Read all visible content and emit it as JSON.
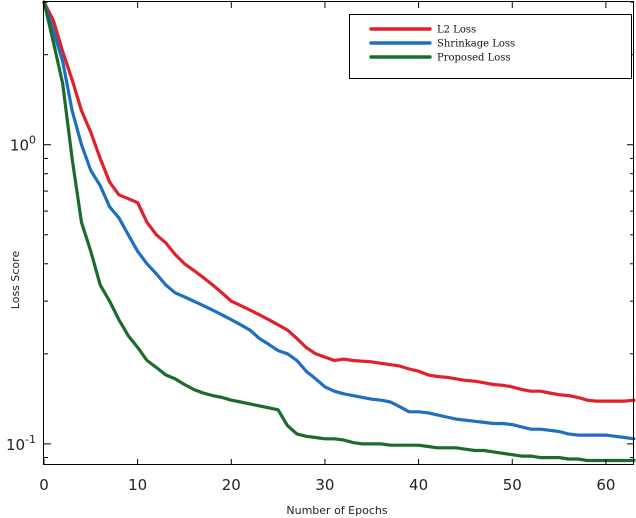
{
  "chart_data": {
    "type": "line",
    "title": "",
    "xlabel": "Number of Epochs",
    "ylabel": "Loss Score",
    "yscale": "log",
    "xlim": [
      0,
      63
    ],
    "ylim": [
      0.085,
      3.0
    ],
    "grid": false,
    "legend_position": "top-right",
    "x_ticks": [
      {
        "value": 0,
        "label": "0"
      },
      {
        "value": 10,
        "label": "10"
      },
      {
        "value": 20,
        "label": "20"
      },
      {
        "value": 30,
        "label": "30"
      },
      {
        "value": 40,
        "label": "40"
      },
      {
        "value": 50,
        "label": "50"
      },
      {
        "value": 60,
        "label": "60"
      }
    ],
    "y_ticks": [
      {
        "value": 1,
        "base": "10",
        "exp": "0"
      },
      {
        "value": 0.1,
        "base": "10",
        "exp": "-1"
      }
    ],
    "series": [
      {
        "name": "L2 Loss",
        "color": "#e0212b",
        "points": [
          [
            0,
            3.0
          ],
          [
            1,
            2.6
          ],
          [
            2,
            2.05
          ],
          [
            3,
            1.65
          ],
          [
            4,
            1.3
          ],
          [
            5,
            1.1
          ],
          [
            6,
            0.9
          ],
          [
            7,
            0.75
          ],
          [
            8,
            0.68
          ],
          [
            9,
            0.66
          ],
          [
            10,
            0.64
          ],
          [
            11,
            0.55
          ],
          [
            12,
            0.5
          ],
          [
            13,
            0.47
          ],
          [
            14,
            0.43
          ],
          [
            15,
            0.4
          ],
          [
            16,
            0.38
          ],
          [
            17,
            0.36
          ],
          [
            18,
            0.34
          ],
          [
            19,
            0.32
          ],
          [
            20,
            0.3
          ],
          [
            21,
            0.29
          ],
          [
            22,
            0.28
          ],
          [
            23,
            0.27
          ],
          [
            24,
            0.26
          ],
          [
            25,
            0.25
          ],
          [
            26,
            0.24
          ],
          [
            27,
            0.225
          ],
          [
            28,
            0.21
          ],
          [
            29,
            0.2
          ],
          [
            30,
            0.195
          ],
          [
            31,
            0.19
          ],
          [
            32,
            0.192
          ],
          [
            33,
            0.19
          ],
          [
            34,
            0.189
          ],
          [
            35,
            0.188
          ],
          [
            36,
            0.186
          ],
          [
            37,
            0.184
          ],
          [
            38,
            0.182
          ],
          [
            39,
            0.178
          ],
          [
            40,
            0.175
          ],
          [
            41,
            0.17
          ],
          [
            42,
            0.168
          ],
          [
            43,
            0.167
          ],
          [
            44,
            0.165
          ],
          [
            45,
            0.163
          ],
          [
            46,
            0.162
          ],
          [
            47,
            0.16
          ],
          [
            48,
            0.158
          ],
          [
            49,
            0.157
          ],
          [
            50,
            0.155
          ],
          [
            51,
            0.152
          ],
          [
            52,
            0.15
          ],
          [
            53,
            0.15
          ],
          [
            54,
            0.148
          ],
          [
            55,
            0.146
          ],
          [
            56,
            0.145
          ],
          [
            57,
            0.143
          ],
          [
            58,
            0.14
          ],
          [
            59,
            0.139
          ],
          [
            60,
            0.139
          ],
          [
            61,
            0.139
          ],
          [
            62,
            0.139
          ],
          [
            63,
            0.14
          ]
        ]
      },
      {
        "name": "Shrinkage Loss",
        "color": "#1f6fc1",
        "points": [
          [
            0,
            3.0
          ],
          [
            1,
            2.4
          ],
          [
            2,
            1.9
          ],
          [
            3,
            1.3
          ],
          [
            4,
            1.0
          ],
          [
            5,
            0.82
          ],
          [
            6,
            0.73
          ],
          [
            7,
            0.62
          ],
          [
            8,
            0.57
          ],
          [
            9,
            0.5
          ],
          [
            10,
            0.44
          ],
          [
            11,
            0.4
          ],
          [
            12,
            0.37
          ],
          [
            13,
            0.34
          ],
          [
            14,
            0.32
          ],
          [
            15,
            0.31
          ],
          [
            16,
            0.3
          ],
          [
            17,
            0.29
          ],
          [
            18,
            0.28
          ],
          [
            19,
            0.27
          ],
          [
            20,
            0.26
          ],
          [
            21,
            0.25
          ],
          [
            22,
            0.24
          ],
          [
            23,
            0.225
          ],
          [
            24,
            0.215
          ],
          [
            25,
            0.205
          ],
          [
            26,
            0.2
          ],
          [
            27,
            0.19
          ],
          [
            28,
            0.175
          ],
          [
            29,
            0.165
          ],
          [
            30,
            0.155
          ],
          [
            31,
            0.15
          ],
          [
            32,
            0.147
          ],
          [
            33,
            0.145
          ],
          [
            34,
            0.143
          ],
          [
            35,
            0.141
          ],
          [
            36,
            0.14
          ],
          [
            37,
            0.138
          ],
          [
            38,
            0.133
          ],
          [
            39,
            0.128
          ],
          [
            40,
            0.128
          ],
          [
            41,
            0.127
          ],
          [
            42,
            0.125
          ],
          [
            43,
            0.123
          ],
          [
            44,
            0.121
          ],
          [
            45,
            0.12
          ],
          [
            46,
            0.119
          ],
          [
            47,
            0.118
          ],
          [
            48,
            0.117
          ],
          [
            49,
            0.117
          ],
          [
            50,
            0.116
          ],
          [
            51,
            0.114
          ],
          [
            52,
            0.112
          ],
          [
            53,
            0.112
          ],
          [
            54,
            0.111
          ],
          [
            55,
            0.11
          ],
          [
            56,
            0.108
          ],
          [
            57,
            0.107
          ],
          [
            58,
            0.107
          ],
          [
            59,
            0.107
          ],
          [
            60,
            0.107
          ],
          [
            61,
            0.106
          ],
          [
            62,
            0.105
          ],
          [
            63,
            0.104
          ]
        ]
      },
      {
        "name": "Proposed Loss",
        "color": "#1a6b2e",
        "points": [
          [
            0,
            3.0
          ],
          [
            1,
            2.2
          ],
          [
            2,
            1.6
          ],
          [
            3,
            0.9
          ],
          [
            4,
            0.55
          ],
          [
            5,
            0.44
          ],
          [
            6,
            0.34
          ],
          [
            7,
            0.3
          ],
          [
            8,
            0.26
          ],
          [
            9,
            0.23
          ],
          [
            10,
            0.21
          ],
          [
            11,
            0.19
          ],
          [
            12,
            0.18
          ],
          [
            13,
            0.17
          ],
          [
            14,
            0.165
          ],
          [
            15,
            0.158
          ],
          [
            16,
            0.152
          ],
          [
            17,
            0.148
          ],
          [
            18,
            0.145
          ],
          [
            19,
            0.143
          ],
          [
            20,
            0.14
          ],
          [
            21,
            0.138
          ],
          [
            22,
            0.136
          ],
          [
            23,
            0.134
          ],
          [
            24,
            0.132
          ],
          [
            25,
            0.13
          ],
          [
            26,
            0.115
          ],
          [
            27,
            0.108
          ],
          [
            28,
            0.106
          ],
          [
            29,
            0.105
          ],
          [
            30,
            0.104
          ],
          [
            31,
            0.104
          ],
          [
            32,
            0.103
          ],
          [
            33,
            0.101
          ],
          [
            34,
            0.1
          ],
          [
            35,
            0.1
          ],
          [
            36,
            0.1
          ],
          [
            37,
            0.099
          ],
          [
            38,
            0.099
          ],
          [
            39,
            0.099
          ],
          [
            40,
            0.099
          ],
          [
            41,
            0.098
          ],
          [
            42,
            0.097
          ],
          [
            43,
            0.097
          ],
          [
            44,
            0.097
          ],
          [
            45,
            0.096
          ],
          [
            46,
            0.095
          ],
          [
            47,
            0.095
          ],
          [
            48,
            0.094
          ],
          [
            49,
            0.093
          ],
          [
            50,
            0.092
          ],
          [
            51,
            0.091
          ],
          [
            52,
            0.091
          ],
          [
            53,
            0.09
          ],
          [
            54,
            0.09
          ],
          [
            55,
            0.09
          ],
          [
            56,
            0.089
          ],
          [
            57,
            0.089
          ],
          [
            58,
            0.088
          ],
          [
            59,
            0.088
          ],
          [
            60,
            0.088
          ],
          [
            61,
            0.088
          ],
          [
            62,
            0.088
          ],
          [
            63,
            0.088
          ]
        ]
      }
    ]
  }
}
